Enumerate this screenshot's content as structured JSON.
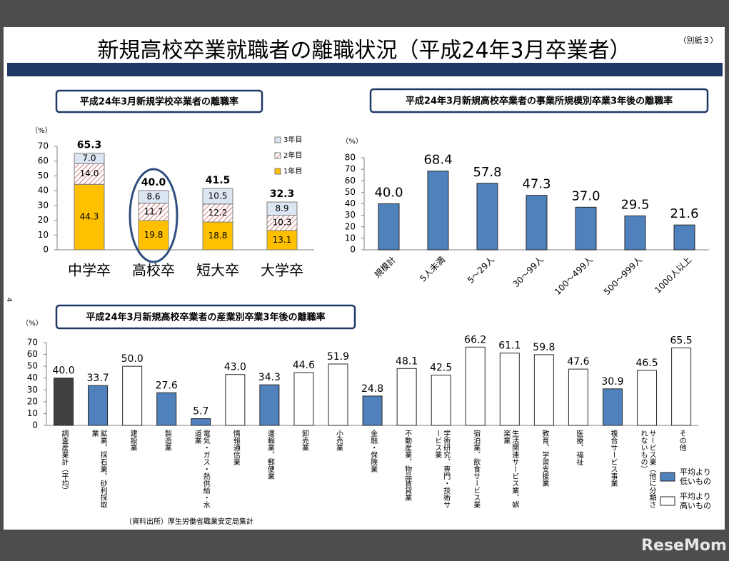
{
  "title": "新規高校卒業就職者の離職状況（平成24年3月卒業者）",
  "note": "（別紙３）",
  "page_number": "4",
  "source": "（資料出所）厚生労働省職業安定局集計",
  "watermark": "ReseMom",
  "chart_data": [
    {
      "type": "stacked_bar",
      "title": "平成24年3月新規学校卒業者の離職率",
      "y_label": "（%）",
      "categories": [
        "中学卒",
        "高校卒",
        "短大卒",
        "大学卒"
      ],
      "series": [
        {
          "name": "1年目",
          "color": "#ffc000",
          "values": [
            44.3,
            19.8,
            18.8,
            13.1
          ],
          "value_labels": [
            "44.3",
            "19.8",
            "18.8",
            "13.1"
          ]
        },
        {
          "name": "2年目",
          "color": "#c0504d",
          "hatch": true,
          "values": [
            14.0,
            11.7,
            12.2,
            10.3
          ],
          "value_labels": [
            "14.0",
            "11.7",
            "12.2",
            "10.3"
          ]
        },
        {
          "name": "3年目",
          "color": "#dce6f2",
          "values": [
            7.0,
            8.6,
            10.5,
            8.9
          ],
          "value_labels": [
            "7.0",
            "8.6",
            "10.5",
            "8.9"
          ]
        }
      ],
      "totals": [
        65.3,
        40.0,
        41.5,
        32.3
      ],
      "total_labels": [
        "65.3",
        "40.0",
        "41.5",
        "32.3"
      ],
      "highlight": 1,
      "ylim": [
        0,
        70
      ],
      "yticks": [
        0,
        10,
        20,
        30,
        40,
        50,
        60,
        70
      ],
      "grid": false
    },
    {
      "type": "bar",
      "title": "平成24年3月新規高校卒業者の事業所規模別卒業3年後の離職率",
      "y_label": "（%）",
      "categories": [
        "規模計",
        "5人未満",
        "5～29人",
        "30～99人",
        "100～499人",
        "500～999人",
        "1000人以上"
      ],
      "values": [
        40.0,
        68.4,
        57.8,
        47.3,
        37.0,
        29.5,
        21.6
      ],
      "value_labels": [
        "40.0",
        "68.4",
        "57.8",
        "47.3",
        "37.0",
        "29.5",
        "21.6"
      ],
      "color": "#4f81bd",
      "ylim": [
        0,
        80
      ],
      "yticks": [
        0,
        10,
        20,
        30,
        40,
        50,
        60,
        70,
        80
      ],
      "grid": false
    },
    {
      "type": "bar",
      "title": "平成24年3月新規高校卒業者の産業別卒業3年後の離職率",
      "y_label": "（%）",
      "categories": [
        "調査産業計（平均）",
        "鉱業、採石業、砂利採取業",
        "建設業",
        "製造業",
        "電気・ガス・熱供給・水道業",
        "情報通信業",
        "運輸業、郵便業",
        "卸売業",
        "小売業",
        "金融・保険業",
        "不動産業、物品賃貸業",
        "学術研究、専門・技術サービス業",
        "宿泊業、飲食サービス業",
        "生活関連サービス業、娯楽業",
        "教育、学習支援業",
        "医療、福祉",
        "複合サービス事業",
        "サービス業（他に分類されないもの）",
        "その他"
      ],
      "values": [
        40.0,
        33.7,
        50.0,
        27.6,
        5.7,
        43.0,
        34.3,
        44.6,
        51.9,
        24.8,
        48.1,
        42.5,
        66.2,
        61.1,
        59.8,
        47.6,
        30.9,
        46.5,
        65.5
      ],
      "value_labels": [
        "40.0",
        "33.7",
        "50.0",
        "27.6",
        "5.7",
        "43.0",
        "34.3",
        "44.6",
        "51.9",
        "24.8",
        "48.1",
        "42.5",
        "66.2",
        "61.1",
        "59.8",
        "47.6",
        "30.9",
        "46.5",
        "65.5"
      ],
      "colors": [
        "#404040",
        "#4f81bd",
        "#ffffff",
        "#4f81bd",
        "#4f81bd",
        "#ffffff",
        "#4f81bd",
        "#ffffff",
        "#ffffff",
        "#4f81bd",
        "#ffffff",
        "#ffffff",
        "#ffffff",
        "#ffffff",
        "#ffffff",
        "#ffffff",
        "#4f81bd",
        "#ffffff",
        "#ffffff"
      ],
      "legend": [
        {
          "name": "平均より低いもの",
          "color": "#4f81bd"
        },
        {
          "name": "平均より高いもの",
          "color": "#ffffff"
        }
      ],
      "ylim": [
        0,
        70
      ],
      "yticks": [
        0,
        10,
        20,
        30,
        40,
        50,
        60,
        70
      ],
      "grid": false
    }
  ]
}
